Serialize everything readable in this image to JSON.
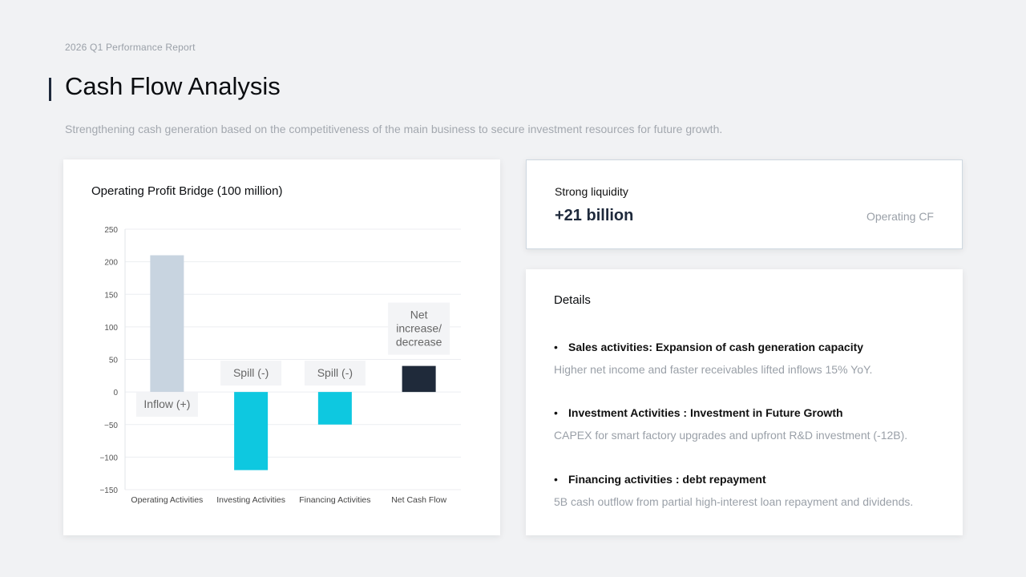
{
  "header": {
    "eyebrow": "2026 Q1 Performance Report",
    "title": "Cash Flow Analysis",
    "subtitle": "Strengthening cash generation based on the competitiveness of the main business to secure investment resources for future growth."
  },
  "liquidity": {
    "label": "Strong liquidity",
    "value": "+21 billion",
    "note": "Operating CF"
  },
  "details": {
    "title": "Details",
    "items": [
      {
        "heading": "Sales activities: Expansion of cash generation capacity",
        "description": "Higher net income and faster receivables lifted inflows 15% YoY."
      },
      {
        "heading": "Investment Activities : Investment in Future Growth",
        "description": "CAPEX for smart factory upgrades and upfront R&D investment (-12B)."
      },
      {
        "heading": "Financing activities : debt repayment",
        "description": "5B cash outflow from partial high-interest loan repayment and dividends."
      }
    ]
  },
  "chart_data": {
    "type": "bar",
    "title": "Operating Profit Bridge (100 million)",
    "categories": [
      "Operating Activities",
      "Investing Activities",
      "Financing Activities",
      "Net Cash Flow"
    ],
    "values": [
      210,
      -120,
      -50,
      40
    ],
    "bar_labels": [
      "Inflow (+)",
      "Spill (-)",
      "Spill (-)",
      "Net increase/ decrease"
    ],
    "ylim": [
      -150,
      250
    ],
    "yticks": [
      250,
      200,
      150,
      100,
      50,
      0,
      -50,
      -100,
      -150
    ],
    "ytick_labels": [
      "250",
      "200",
      "150",
      "100",
      "50",
      "0",
      "−50",
      "−100",
      "−150"
    ],
    "grid": true,
    "colors": [
      "#c8d4e0",
      "#0ec8e0",
      "#0ec8e0",
      "#1f2a3a"
    ]
  }
}
